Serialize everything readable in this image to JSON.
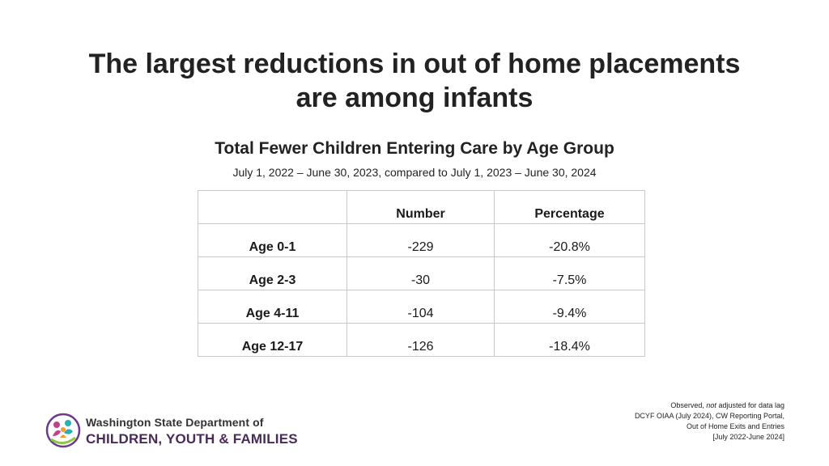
{
  "slide": {
    "title_line1": "The largest reductions in out of home placements",
    "title_line2": "are among infants",
    "table_title": "Total Fewer Children Entering Care by Age Group",
    "table_subtitle": "July 1, 2022 – June 30, 2023, compared to July 1, 2023 – June 30, 2024"
  },
  "table": {
    "headers": [
      "",
      "Number",
      "Percentage"
    ],
    "rows": [
      {
        "label": "Age 0-1",
        "number": "-229",
        "percentage": "-20.8%"
      },
      {
        "label": "Age 2-3",
        "number": "-30",
        "percentage": "-7.5%"
      },
      {
        "label": "Age 4-11",
        "number": "-104",
        "percentage": "-9.4%"
      },
      {
        "label": "Age 12-17",
        "number": "-126",
        "percentage": "-18.4%"
      }
    ]
  },
  "footnote": {
    "line1_pre": "Observed, ",
    "line1_em": "not",
    "line1_post": " adjusted for data lag",
    "line2": "DCYF OIAA (July 2024), CW Reporting Portal,",
    "line3": "Out of Home Exits and Entries",
    "line4": "[July 2022-June 2024]"
  },
  "logo": {
    "line1": "Washington State Department of",
    "line2": "CHILDREN, YOUTH & FAMILIES",
    "icon": "dcyf-logo-icon",
    "colors": {
      "purple": "#6b3a8c",
      "green": "#8dc63f",
      "magenta": "#c2418f",
      "teal": "#2ab0b0",
      "orange": "#f39c34"
    }
  }
}
